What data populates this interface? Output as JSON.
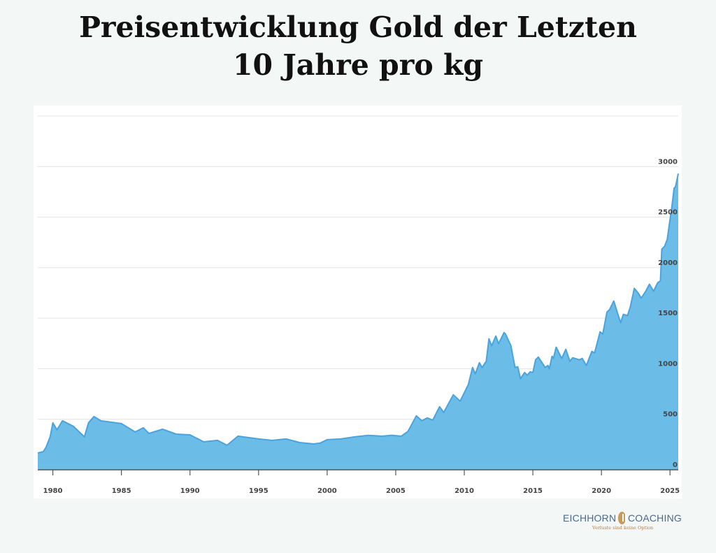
{
  "title_line1": "Preisentwicklung Gold der Letzten",
  "title_line2": "10 Jahre pro kg",
  "logo": {
    "left": "EICHHORN",
    "right": "COACHING",
    "tagline": "Verluste sind keine Option"
  },
  "colors": {
    "fill": "#6bbde8",
    "stroke": "#4aa3dc",
    "grid": "#e4e4e4",
    "axis": "#555555"
  },
  "chart_data": {
    "type": "area",
    "title": "Preisentwicklung Gold der Letzten 10 Jahre pro kg",
    "xlabel": "",
    "ylabel": "",
    "xlim": [
      1978.9,
      2025.6
    ],
    "ylim": [
      0,
      3500
    ],
    "grid": true,
    "y_axis_position": "right",
    "x_ticks": [
      1980,
      1985,
      1990,
      1995,
      2000,
      2005,
      2010,
      2015,
      2020,
      2025
    ],
    "x_tick_labels": [
      "1980",
      "1985",
      "1990",
      "1995",
      "2000",
      "2005",
      "2010",
      "2015",
      "2020",
      "2025"
    ],
    "y_ticks": [
      0,
      500,
      1000,
      1500,
      2000,
      2500,
      3000
    ],
    "y_tick_labels": [
      "0",
      "500",
      "1000",
      "1500",
      "2000",
      "2500",
      "3000"
    ],
    "points": [
      [
        1978.9,
        166
      ],
      [
        1979.3,
        180
      ],
      [
        1979.5,
        222
      ],
      [
        1979.8,
        326
      ],
      [
        1980.0,
        465
      ],
      [
        1980.3,
        395
      ],
      [
        1980.7,
        485
      ],
      [
        1981.5,
        430
      ],
      [
        1982.3,
        326
      ],
      [
        1982.6,
        465
      ],
      [
        1983.0,
        527
      ],
      [
        1983.5,
        485
      ],
      [
        1985.0,
        457
      ],
      [
        1986.0,
        374
      ],
      [
        1986.6,
        416
      ],
      [
        1987.0,
        360
      ],
      [
        1988.0,
        402
      ],
      [
        1989.0,
        353
      ],
      [
        1990.0,
        346
      ],
      [
        1991.0,
        277
      ],
      [
        1992.0,
        291
      ],
      [
        1992.7,
        243
      ],
      [
        1993.5,
        333
      ],
      [
        1995.0,
        305
      ],
      [
        1996.0,
        291
      ],
      [
        1997.0,
        305
      ],
      [
        1998.0,
        270
      ],
      [
        1999.0,
        256
      ],
      [
        1999.5,
        265
      ],
      [
        2000.0,
        298
      ],
      [
        2001.0,
        305
      ],
      [
        2002.0,
        326
      ],
      [
        2003.0,
        340
      ],
      [
        2004.0,
        333
      ],
      [
        2004.7,
        342
      ],
      [
        2005.4,
        333
      ],
      [
        2005.9,
        381
      ],
      [
        2006.5,
        534
      ],
      [
        2006.9,
        485
      ],
      [
        2007.3,
        513
      ],
      [
        2007.7,
        492
      ],
      [
        2008.2,
        624
      ],
      [
        2008.5,
        568
      ],
      [
        2009.2,
        742
      ],
      [
        2009.7,
        679
      ],
      [
        2010.0,
        762
      ],
      [
        2010.3,
        845
      ],
      [
        2010.6,
        1012
      ],
      [
        2010.8,
        949
      ],
      [
        2011.1,
        1060
      ],
      [
        2011.3,
        1012
      ],
      [
        2011.6,
        1074
      ],
      [
        2011.8,
        1296
      ],
      [
        2012.0,
        1227
      ],
      [
        2012.3,
        1324
      ],
      [
        2012.5,
        1247
      ],
      [
        2012.9,
        1358
      ],
      [
        2013.0,
        1344
      ],
      [
        2013.4,
        1227
      ],
      [
        2013.7,
        1012
      ],
      [
        2013.9,
        1019
      ],
      [
        2014.1,
        901
      ],
      [
        2014.4,
        963
      ],
      [
        2014.6,
        935
      ],
      [
        2014.8,
        970
      ],
      [
        2015.0,
        963
      ],
      [
        2015.2,
        1088
      ],
      [
        2015.4,
        1116
      ],
      [
        2015.9,
        1012
      ],
      [
        2016.1,
        1033
      ],
      [
        2016.2,
        998
      ],
      [
        2016.4,
        1123
      ],
      [
        2016.5,
        1102
      ],
      [
        2016.7,
        1213
      ],
      [
        2017.1,
        1102
      ],
      [
        2017.4,
        1192
      ],
      [
        2017.7,
        1074
      ],
      [
        2017.9,
        1109
      ],
      [
        2018.4,
        1088
      ],
      [
        2018.6,
        1102
      ],
      [
        2018.9,
        1033
      ],
      [
        2019.3,
        1171
      ],
      [
        2019.5,
        1157
      ],
      [
        2019.9,
        1365
      ],
      [
        2020.1,
        1344
      ],
      [
        2020.4,
        1559
      ],
      [
        2020.6,
        1587
      ],
      [
        2020.9,
        1670
      ],
      [
        2021.2,
        1538
      ],
      [
        2021.4,
        1455
      ],
      [
        2021.6,
        1538
      ],
      [
        2021.9,
        1525
      ],
      [
        2022.1,
        1608
      ],
      [
        2022.4,
        1795
      ],
      [
        2022.7,
        1746
      ],
      [
        2022.9,
        1698
      ],
      [
        2023.2,
        1760
      ],
      [
        2023.5,
        1836
      ],
      [
        2023.8,
        1767
      ],
      [
        2024.1,
        1850
      ],
      [
        2024.3,
        1871
      ],
      [
        2024.4,
        2183
      ],
      [
        2024.6,
        2210
      ],
      [
        2024.8,
        2280
      ],
      [
        2025.0,
        2474
      ],
      [
        2025.1,
        2564
      ],
      [
        2025.3,
        2786
      ],
      [
        2025.4,
        2800
      ],
      [
        2025.6,
        2931
      ]
    ]
  }
}
